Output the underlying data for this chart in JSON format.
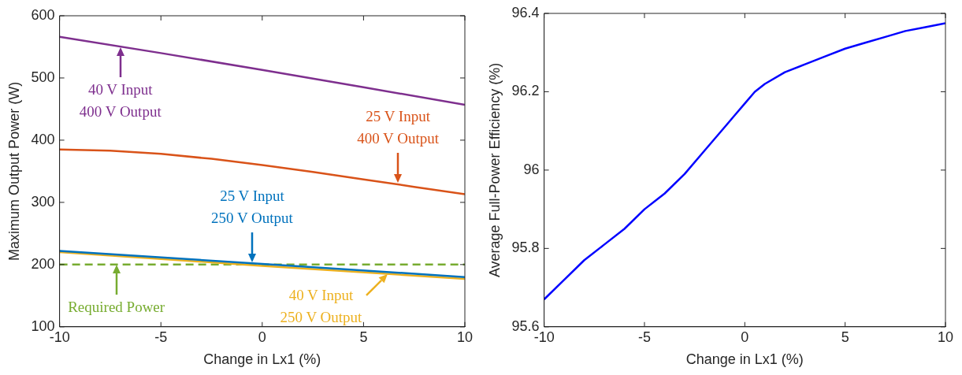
{
  "chart_data": [
    {
      "type": "line",
      "xlabel": "Change in Lx1 (%)",
      "ylabel": "Maximum Output Power (W)",
      "xlim": [
        -10,
        10
      ],
      "xticks": [
        -10,
        -5,
        0,
        5,
        10
      ],
      "ylim": [
        100,
        600
      ],
      "yticks": [
        100,
        200,
        300,
        400,
        500,
        600
      ],
      "grid": false,
      "legend": false,
      "series": [
        {
          "color": "#7e2f8e",
          "x": [
            -10,
            -5,
            0,
            5,
            10
          ],
          "values": [
            566,
            540,
            513,
            485,
            457
          ]
        },
        {
          "color": "#d95319",
          "x": [
            -10,
            -7.5,
            -5,
            -2.5,
            0,
            2.5,
            5,
            7.5,
            10
          ],
          "values": [
            385,
            383,
            378,
            370,
            360,
            349,
            337,
            325,
            313
          ]
        },
        {
          "color": "#0072bd",
          "x": [
            -10,
            0,
            10
          ],
          "values": [
            222,
            201,
            180
          ]
        },
        {
          "color": "#edb120",
          "x": [
            -10,
            0,
            10
          ],
          "values": [
            220,
            198,
            177
          ]
        }
      ],
      "ref_lines": [
        {
          "axis": "y",
          "value": 200,
          "color": "#77ac30",
          "line_style": "dashed"
        }
      ],
      "annotations": [
        {
          "text": "40 V Input\n400 V Output",
          "x": -7,
          "y": 549
        },
        {
          "text": "25 V Input\n400 V Output",
          "x": 6.7,
          "y": 331
        },
        {
          "text": "25 V Input\n250 V Output",
          "x": -0.5,
          "y": 203
        },
        {
          "text": "Required Power",
          "x": -7.2,
          "y": 200
        },
        {
          "text": "40 V Input\n250 V Output",
          "x": 6.2,
          "y": 185
        }
      ]
    },
    {
      "type": "line",
      "xlabel": "Change in Lx1 (%)",
      "ylabel": "Average Full-Power Efficiency (%)",
      "xlim": [
        -10,
        10
      ],
      "xticks": [
        -10,
        -5,
        0,
        5,
        10
      ],
      "ylim": [
        95.6,
        96.4
      ],
      "yticks": [
        95.6,
        95.8,
        96,
        96.2,
        96.4
      ],
      "grid": false,
      "legend": false,
      "series": [
        {
          "color": "#0000ff",
          "x": [
            -10,
            -9,
            -8,
            -7,
            -6,
            -5,
            -4,
            -3,
            -2,
            -1,
            -0.5,
            0,
            0.5,
            1,
            2,
            3,
            4,
            5,
            6,
            7,
            8,
            9,
            10
          ],
          "values": [
            95.67,
            95.72,
            95.77,
            95.81,
            95.85,
            95.9,
            95.94,
            95.99,
            96.05,
            96.11,
            96.14,
            96.17,
            96.2,
            96.22,
            96.25,
            96.27,
            96.29,
            96.31,
            96.325,
            96.34,
            96.355,
            96.365,
            96.375
          ]
        }
      ]
    }
  ]
}
